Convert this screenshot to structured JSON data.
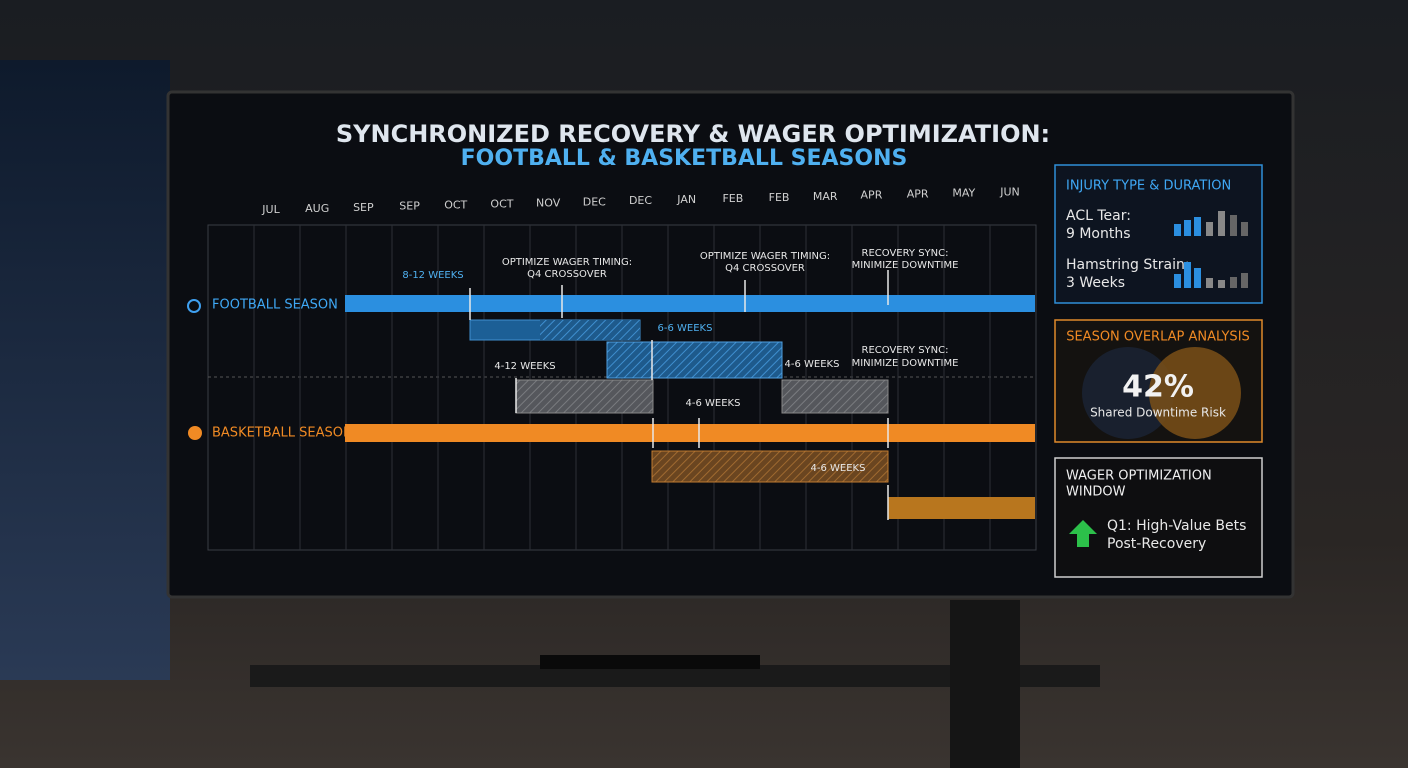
{
  "header": {
    "title_line1": "SYNCHRONIZED RECOVERY & WAGER OPTIMIZATION:",
    "title_line2": "FOOTBALL & BASKETBALL SEASONS"
  },
  "timeline": {
    "months": [
      "JUL",
      "AUG",
      "SEP",
      "SEP",
      "OCT",
      "OCT",
      "NOV",
      "DEC",
      "DEC",
      "JAN",
      "FEB",
      "FEB",
      "MAR",
      "APR",
      "APR",
      "MAY",
      "JUN"
    ],
    "rows": [
      {
        "label": "FOOTBALL SEASON"
      },
      {
        "label": "BASKETBALL SEASON"
      }
    ],
    "annotations": [
      "8-12 WEEKS",
      "OPTIMIZE WAGER TIMING:",
      "Q4 CROSSOVER",
      "OPTIMIZE WAGER TIMING:",
      "Q4 CROSSOVER",
      "RECOVERY SYNC:",
      "MINIMIZE DOWNTIME",
      "6-6 WEEKS",
      "4-12 WEEKS",
      "4-6 WEEKS",
      "RECOVERY SYNC:",
      "MINIMIZE DOWNTIME",
      "4-6 WEEKS",
      "4-6 WEEKS"
    ]
  },
  "injury_panel": {
    "title": "INJURY TYPE & DURATION",
    "items": [
      {
        "name": "ACL Tear:",
        "duration": "9 Months"
      },
      {
        "name": "Hamstring Strain:",
        "duration": "3 Weeks"
      }
    ]
  },
  "overlap_panel": {
    "title": "SEASON OVERLAP ANALYSIS",
    "value": "42%",
    "caption": "Shared Downtime Risk"
  },
  "wager_panel": {
    "title_lines": [
      "WAGER OPTIMIZATION",
      "WINDOW"
    ],
    "text_lines": [
      "Q1: High-Value Bets",
      "Post-Recovery"
    ]
  }
}
